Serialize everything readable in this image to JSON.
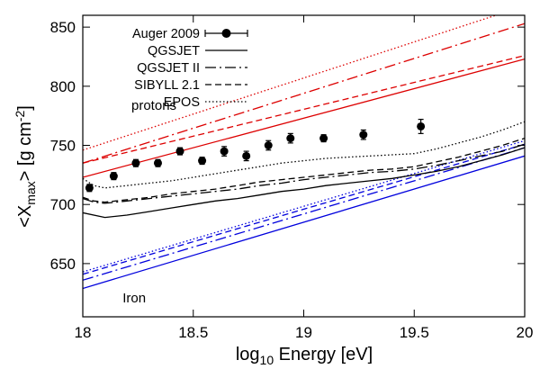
{
  "chart_data": {
    "type": "line",
    "xlabel_main": "log",
    "xlabel_sub": "10",
    "xlabel_rest": " Energy [eV]",
    "ylabel_pre": "<X",
    "ylabel_sub": "max",
    "ylabel_mid": "> [g cm",
    "ylabel_sup": "-2",
    "ylabel_post": "]",
    "xlim": [
      18,
      20
    ],
    "ylim": [
      605,
      860
    ],
    "xticks": [
      {
        "value": 18,
        "label": "18"
      },
      {
        "value": 18.5,
        "label": "18.5"
      },
      {
        "value": 19,
        "label": "19"
      },
      {
        "value": 19.5,
        "label": "19.5"
      },
      {
        "value": 20,
        "label": "20"
      }
    ],
    "yticks": [
      {
        "value": 650,
        "label": "650"
      },
      {
        "value": 700,
        "label": "700"
      },
      {
        "value": 750,
        "label": "750"
      },
      {
        "value": 800,
        "label": "800"
      },
      {
        "value": 850,
        "label": "850"
      }
    ],
    "grid": false,
    "legend_position": "top-left",
    "legend": [
      {
        "label": "Auger 2009",
        "style": "point"
      },
      {
        "label": "QGSJET",
        "style": "solid"
      },
      {
        "label": "QGSJET II",
        "style": "dashdot"
      },
      {
        "label": "SIBYLL 2.1",
        "style": "dashed"
      },
      {
        "label": "EPOS",
        "style": "dotted"
      }
    ],
    "annotations": [
      {
        "text": "protons",
        "x": 18.22,
        "y": 780
      },
      {
        "text": "Iron",
        "x": 18.18,
        "y": 617
      }
    ],
    "colors": {
      "proton": "#dd0000",
      "iron": "#0000dd",
      "data": "#000000"
    },
    "data_points": {
      "name": "Auger 2009",
      "x": [
        18.03,
        18.14,
        18.24,
        18.34,
        18.44,
        18.54,
        18.64,
        18.74,
        18.84,
        18.94,
        19.09,
        19.27,
        19.53
      ],
      "y": [
        714,
        724,
        735,
        735,
        745,
        737,
        745,
        741,
        750,
        756,
        756,
        759,
        766
      ],
      "err": [
        3,
        3,
        3,
        3,
        3,
        3,
        4,
        4,
        4,
        4,
        3,
        4,
        6
      ]
    },
    "series": [
      {
        "model": "QGSJET",
        "group": "proton",
        "style": "solid",
        "x": [
          18,
          20
        ],
        "y": [
          723,
          823
        ]
      },
      {
        "model": "QGSJET II",
        "group": "proton",
        "style": "dashdot",
        "x": [
          18,
          20
        ],
        "y": [
          735,
          853
        ]
      },
      {
        "model": "SIBYLL 2.1",
        "group": "proton",
        "style": "dashed",
        "x": [
          18,
          20
        ],
        "y": [
          735,
          826
        ]
      },
      {
        "model": "EPOS",
        "group": "proton",
        "style": "dotted",
        "x": [
          18,
          20
        ],
        "y": [
          746,
          868
        ]
      },
      {
        "model": "QGSJET",
        "group": "iron",
        "style": "solid",
        "x": [
          18,
          20
        ],
        "y": [
          629,
          741
        ]
      },
      {
        "model": "QGSJET II",
        "group": "iron",
        "style": "dashdot",
        "x": [
          18,
          20
        ],
        "y": [
          636,
          748
        ]
      },
      {
        "model": "SIBYLL 2.1",
        "group": "iron",
        "style": "dashed",
        "x": [
          18,
          20
        ],
        "y": [
          641,
          751
        ]
      },
      {
        "model": "EPOS",
        "group": "iron",
        "style": "dotted",
        "x": [
          18,
          20
        ],
        "y": [
          643,
          754
        ]
      },
      {
        "model": "QGSJET",
        "group": "mixed",
        "style": "solid",
        "x": [
          18,
          18.1,
          18.2,
          18.3,
          18.4,
          18.5,
          18.6,
          18.7,
          18.8,
          18.9,
          19,
          19.1,
          19.2,
          19.3,
          19.4,
          19.5,
          19.6,
          19.7,
          19.8,
          19.9,
          20
        ],
        "y": [
          693,
          689,
          691,
          694,
          697,
          700,
          703,
          705,
          708,
          711,
          713,
          716,
          718,
          720,
          722,
          725,
          728,
          732,
          737,
          742,
          748
        ]
      },
      {
        "model": "QGSJET II",
        "group": "mixed",
        "style": "dashdot",
        "x": [
          18,
          18.05,
          18.1,
          18.2,
          18.3,
          18.4,
          18.5,
          18.6,
          18.7,
          18.8,
          18.9,
          19,
          19.1,
          19.2,
          19.3,
          19.4,
          19.5,
          19.6,
          19.7,
          19.8,
          19.9,
          20
        ],
        "y": [
          705,
          702,
          701,
          703,
          705,
          707,
          709,
          711,
          713,
          716,
          718,
          721,
          723,
          725,
          727,
          728,
          730,
          733,
          737,
          741,
          745,
          751
        ]
      },
      {
        "model": "SIBYLL 2.1",
        "group": "mixed",
        "style": "dashed",
        "x": [
          18,
          18.05,
          18.1,
          18.2,
          18.3,
          18.4,
          18.5,
          18.6,
          18.7,
          18.8,
          18.9,
          19,
          19.1,
          19.2,
          19.3,
          19.4,
          19.5,
          19.6,
          19.7,
          19.8,
          19.9,
          20
        ],
        "y": [
          706,
          703,
          702,
          704,
          706,
          709,
          711,
          713,
          716,
          719,
          721,
          723,
          725,
          727,
          729,
          730,
          732,
          736,
          740,
          745,
          750,
          756
        ]
      },
      {
        "model": "EPOS",
        "group": "mixed",
        "style": "dotted",
        "x": [
          18,
          18.05,
          18.1,
          18.2,
          18.3,
          18.4,
          18.5,
          18.6,
          18.7,
          18.8,
          18.9,
          19,
          19.1,
          19.2,
          19.3,
          19.4,
          19.5,
          19.6,
          19.7,
          19.8,
          19.9,
          20
        ],
        "y": [
          722,
          716,
          714,
          716,
          718,
          720,
          723,
          726,
          729,
          732,
          735,
          737,
          739,
          740,
          741,
          742,
          743,
          747,
          752,
          757,
          763,
          770
        ]
      }
    ]
  }
}
